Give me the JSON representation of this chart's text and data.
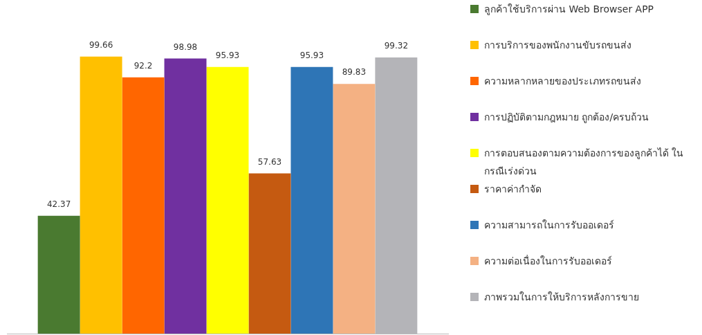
{
  "chart_data": {
    "type": "bar",
    "categories": [
      null
    ],
    "series": [
      {
        "name": "ลูกค้าใช้บริการผ่าน  Web Browser APP",
        "color": "#4a7a30",
        "values": [
          42.37
        ]
      },
      {
        "name": "การบริการของพนักงานขับรถขนส่ง",
        "color": "#ffc000",
        "values": [
          99.66
        ]
      },
      {
        "name": "ความหลากหลายของประเภทรถขนส่ง",
        "color": "#ff6600",
        "values": [
          92.2
        ]
      },
      {
        "name": "การปฏิบัติตามกฎหมาย ถูกต้อง/ครบถ้วน",
        "color": "#7030a0",
        "values": [
          98.98
        ]
      },
      {
        "name": "การตอบสนองตามความต้องการของลูกค้าได้ ในกรณีเร่งด่วน",
        "color": "#ffff00",
        "values": [
          95.93
        ]
      },
      {
        "name": "ราคาค่ากำจัด",
        "color": "#c55a11",
        "values": [
          57.63
        ]
      },
      {
        "name": "ความสามารถในการรับออเดอร์",
        "color": "#2e75b6",
        "values": [
          95.93
        ]
      },
      {
        "name": "ความต่อเนื่องในการรับออเดอร์",
        "color": "#f4b183",
        "values": [
          89.83
        ]
      },
      {
        "name": "ภาพรวมในการให้บริการหลังการขาย",
        "color": "#b4b4b8",
        "values": [
          99.32
        ]
      }
    ],
    "data_labels": true,
    "grid": false,
    "legend": "right",
    "tick_labels": false
  }
}
